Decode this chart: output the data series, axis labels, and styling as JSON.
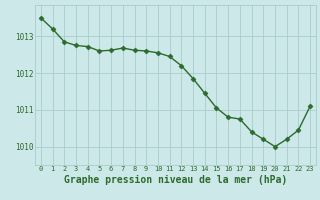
{
  "x": [
    0,
    1,
    2,
    3,
    4,
    5,
    6,
    7,
    8,
    9,
    10,
    11,
    12,
    13,
    14,
    15,
    16,
    17,
    18,
    19,
    20,
    21,
    22,
    23
  ],
  "y": [
    1013.5,
    1013.2,
    1012.85,
    1012.75,
    1012.72,
    1012.6,
    1012.62,
    1012.68,
    1012.62,
    1012.6,
    1012.55,
    1012.45,
    1012.2,
    1011.85,
    1011.45,
    1011.05,
    1010.8,
    1010.75,
    1010.4,
    1010.2,
    1010.0,
    1010.2,
    1010.45,
    1011.1
  ],
  "line_color": "#2d6a2d",
  "marker": "D",
  "marker_size": 2.5,
  "bg_color": "#cce8e8",
  "grid_color": "#aacccc",
  "tick_color": "#2d6a2d",
  "xlabel": "Graphe pression niveau de la mer (hPa)",
  "xlabel_fontsize": 7,
  "ylabel_ticks": [
    1010,
    1011,
    1012,
    1013
  ],
  "xlim": [
    -0.5,
    23.5
  ],
  "ylim": [
    1009.5,
    1013.85
  ],
  "xticks": [
    0,
    1,
    2,
    3,
    4,
    5,
    6,
    7,
    8,
    9,
    10,
    11,
    12,
    13,
    14,
    15,
    16,
    17,
    18,
    19,
    20,
    21,
    22,
    23
  ],
  "line_width": 1.0,
  "xtick_fontsize": 5.0,
  "ytick_fontsize": 5.5
}
